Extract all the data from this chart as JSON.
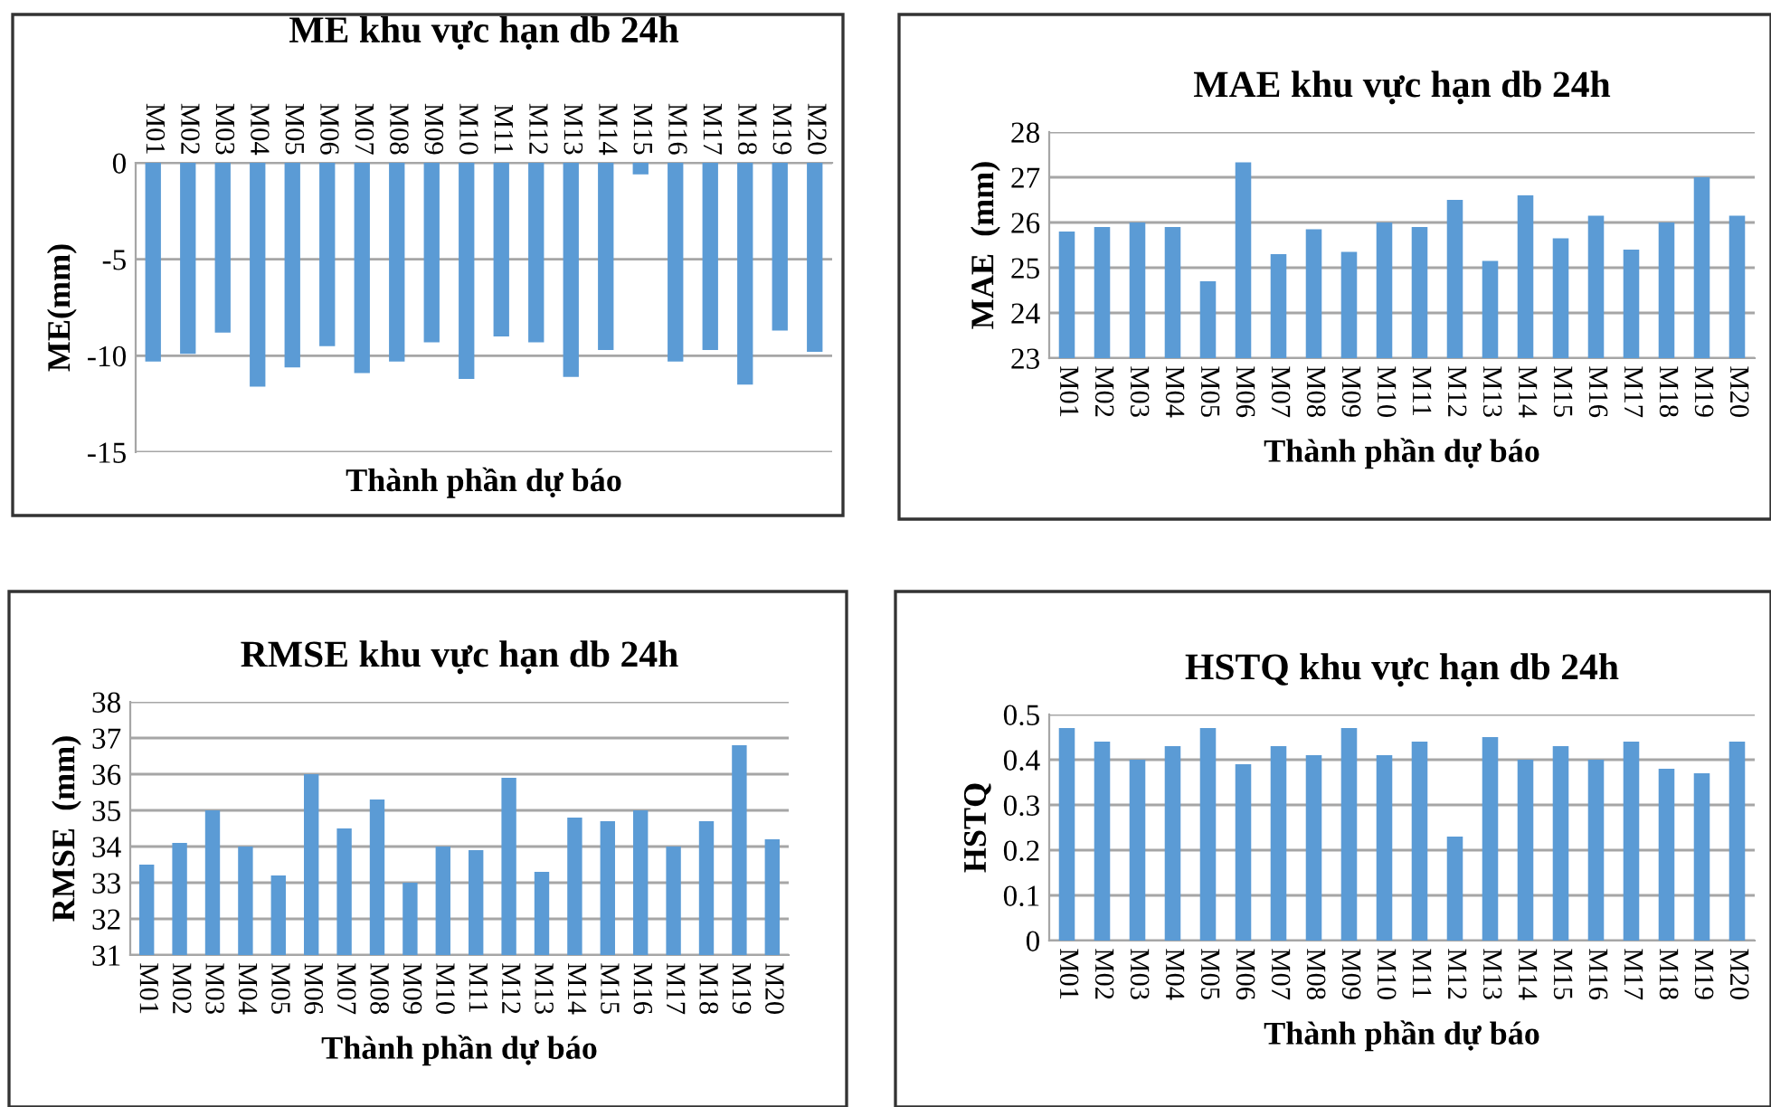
{
  "chart_data": [
    {
      "type": "bar",
      "title": "ME khu vực hạn db 24h",
      "xlabel": "Thành phần dự báo",
      "ylabel": "ME(mm)",
      "categories": [
        "M01",
        "M02",
        "M03",
        "M04",
        "M05",
        "M06",
        "M07",
        "M08",
        "M09",
        "M10",
        "M11",
        "M12",
        "M13",
        "M14",
        "M15",
        "M16",
        "M17",
        "M18",
        "M19",
        "M20"
      ],
      "values": [
        -10.3,
        -9.9,
        -8.8,
        -11.6,
        -10.6,
        -9.5,
        -10.9,
        -10.3,
        -9.3,
        -11.2,
        -9.0,
        -9.3,
        -11.1,
        -9.7,
        -0.6,
        -10.3,
        -9.7,
        -11.5,
        -8.7,
        -9.8
      ],
      "color": "#5b9bd5",
      "ylim": [
        -15,
        0
      ],
      "yticks": [
        -15,
        -10,
        -5,
        0
      ],
      "grid": "y",
      "legend": false
    },
    {
      "type": "bar",
      "title": "MAE khu vực hạn db 24h",
      "xlabel": "Thành phần dự báo",
      "ylabel": "MAE  (mm)",
      "categories": [
        "M01",
        "M02",
        "M03",
        "M04",
        "M05",
        "M06",
        "M07",
        "M08",
        "M09",
        "M10",
        "M11",
        "M12",
        "M13",
        "M14",
        "M15",
        "M16",
        "M17",
        "M18",
        "M19",
        "M20"
      ],
      "values": [
        25.8,
        25.9,
        26.0,
        25.9,
        24.7,
        27.33,
        25.3,
        25.85,
        25.35,
        26.0,
        25.9,
        26.5,
        25.15,
        26.6,
        25.65,
        26.15,
        25.4,
        26.0,
        27.0,
        26.15
      ],
      "color": "#5b9bd5",
      "ylim": [
        23,
        28
      ],
      "yticks": [
        23,
        24,
        25,
        26,
        27,
        28
      ],
      "grid": "y",
      "legend": false
    },
    {
      "type": "bar",
      "title": "RMSE khu vực hạn db 24h",
      "xlabel": "Thành phần dự báo",
      "ylabel": "RMSE  (mm)",
      "categories": [
        "M01",
        "M02",
        "M03",
        "M04",
        "M05",
        "M06",
        "M07",
        "M08",
        "M09",
        "M10",
        "M11",
        "M12",
        "M13",
        "M14",
        "M15",
        "M16",
        "M17",
        "M18",
        "M19",
        "M20"
      ],
      "values": [
        33.5,
        34.1,
        35.0,
        34.0,
        33.2,
        36.0,
        34.5,
        35.3,
        33.0,
        34.0,
        33.9,
        35.9,
        33.3,
        34.8,
        34.7,
        35.0,
        34.0,
        34.7,
        36.8,
        34.2
      ],
      "color": "#5b9bd5",
      "ylim": [
        31,
        38
      ],
      "yticks": [
        31,
        32,
        33,
        34,
        35,
        36,
        37,
        38
      ],
      "grid": "y",
      "legend": false
    },
    {
      "type": "bar",
      "title": "HSTQ khu vực hạn db 24h",
      "xlabel": "Thành phần dự báo",
      "ylabel": "HSTQ",
      "categories": [
        "M01",
        "M02",
        "M03",
        "M04",
        "M05",
        "M06",
        "M07",
        "M08",
        "M09",
        "M10",
        "M11",
        "M12",
        "M13",
        "M14",
        "M15",
        "M16",
        "M17",
        "M18",
        "M19",
        "M20"
      ],
      "values": [
        0.47,
        0.44,
        0.4,
        0.43,
        0.47,
        0.39,
        0.43,
        0.41,
        0.47,
        0.41,
        0.44,
        0.23,
        0.45,
        0.4,
        0.43,
        0.4,
        0.44,
        0.38,
        0.37,
        0.44
      ],
      "color": "#5b9bd5",
      "ylim": [
        0,
        0.5
      ],
      "yticks": [
        0,
        0.1,
        0.2,
        0.3,
        0.4,
        0.5
      ],
      "grid": "y",
      "legend": false
    }
  ]
}
